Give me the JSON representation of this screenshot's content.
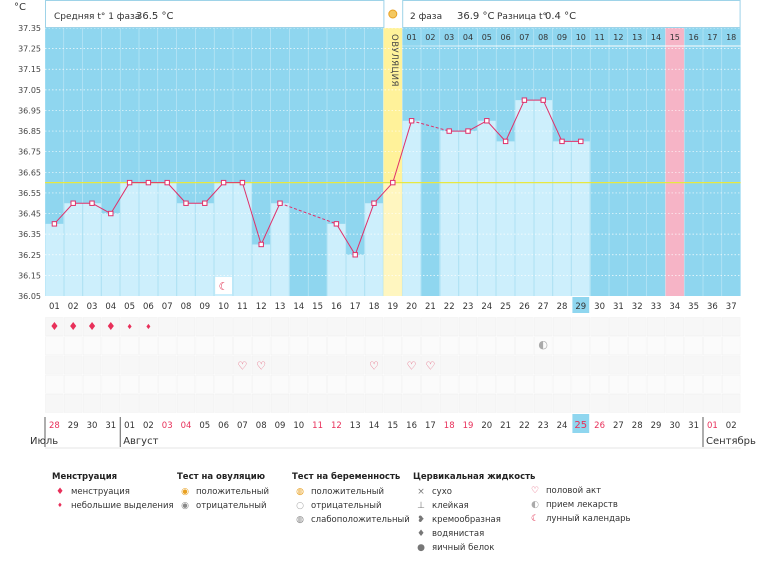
{
  "header": {
    "unit": "°C",
    "phase1_label": "Средняя t° 1 фаза",
    "phase1_value": "36.5 °C",
    "phase2_label": "2 фаза",
    "phase2_value": "36.9 °C",
    "diff_label": "Разница t°",
    "diff_value": "0.4 °C"
  },
  "colors": {
    "main_bg": "#8fd6ef",
    "bar": "#cdeffc",
    "line": "#e0306a",
    "ovulation": "#fff29a",
    "ovulation_bar": "#fff6c0",
    "highlight_day": "#f6b4c6",
    "coverline": "#e8e840",
    "today": "#8fd6ef"
  },
  "chart_data": {
    "type": "line",
    "title": "",
    "ylabel": "°C",
    "ylim": [
      36.05,
      37.35
    ],
    "yticks": [
      "36.05",
      "36.15",
      "36.25",
      "36.35",
      "36.45",
      "36.55",
      "36.65",
      "36.75",
      "36.85",
      "36.95",
      "37.05",
      "37.15",
      "37.25",
      "37.35"
    ],
    "cycle_days": [
      "01",
      "02",
      "03",
      "04",
      "05",
      "06",
      "07",
      "08",
      "09",
      "10",
      "11",
      "12",
      "13",
      "14",
      "15",
      "16",
      "17",
      "18",
      "19",
      "20",
      "21",
      "22",
      "23",
      "24",
      "25",
      "26",
      "27",
      "28",
      "29",
      "30",
      "31",
      "32",
      "33",
      "34",
      "35",
      "36",
      "37"
    ],
    "post_ovulation_days": [
      "01",
      "02",
      "03",
      "04",
      "05",
      "06",
      "07",
      "08",
      "09",
      "10",
      "11",
      "12",
      "13",
      "14",
      "15",
      "16",
      "17",
      "18"
    ],
    "temperatures": [
      36.4,
      36.5,
      36.5,
      36.45,
      36.6,
      36.6,
      36.6,
      36.5,
      36.5,
      36.6,
      36.6,
      36.3,
      36.5,
      null,
      null,
      36.4,
      36.25,
      36.5,
      36.6,
      36.9,
      null,
      36.85,
      36.85,
      36.9,
      36.8,
      37.0,
      37.0,
      36.8,
      36.8,
      null,
      null,
      null,
      null,
      null,
      null,
      null,
      null
    ],
    "dashed_segments": [
      [
        13,
        16
      ],
      [
        20,
        22
      ]
    ],
    "coverline": 36.6,
    "ovulation_day": 19,
    "ovulation_label": "ОВУЛЯЦИЯ",
    "highlight_day": 34,
    "today_day": 29,
    "calendar_dates": [
      "28",
      "29",
      "30",
      "31",
      "01",
      "02",
      "03",
      "04",
      "05",
      "06",
      "07",
      "08",
      "09",
      "10",
      "11",
      "12",
      "13",
      "14",
      "15",
      "16",
      "17",
      "18",
      "19",
      "20",
      "21",
      "22",
      "23",
      "24",
      "25",
      "26",
      "27",
      "28",
      "29",
      "30",
      "31",
      "01",
      "02"
    ],
    "red_dates": [
      1,
      7,
      8,
      15,
      16,
      22,
      23,
      29,
      30,
      36
    ],
    "months": [
      {
        "label": "Июль",
        "day": 1
      },
      {
        "label": "Август",
        "day": 5
      },
      {
        "label": "Сентябрь",
        "day": 36
      }
    ]
  },
  "symbols": {
    "menstruation": [
      1,
      2,
      3,
      4
    ],
    "light_discharge": [
      5,
      6
    ],
    "sex": [
      11,
      12,
      18,
      20,
      21
    ],
    "moon": [
      10
    ],
    "medicine": [
      27
    ]
  },
  "legend": {
    "menstruation": {
      "title": "Менструация",
      "items": [
        "менструация",
        "небольшие выделения"
      ]
    },
    "ovulation_test": {
      "title": "Тест на овуляцию",
      "items": [
        "положительный",
        "отрицательный"
      ]
    },
    "pregnancy_test": {
      "title": "Тест на беременность",
      "items": [
        "положительный",
        "отрицательный",
        "слабоположительный"
      ]
    },
    "cervical": {
      "title": "Цервикальная жидкость",
      "items": [
        "сухо",
        "клейкая",
        "кремообразная",
        "водянистая",
        "яичный белок"
      ]
    },
    "other": {
      "items": [
        "половой акт",
        "прием лекарств",
        "лунный календарь"
      ]
    }
  }
}
